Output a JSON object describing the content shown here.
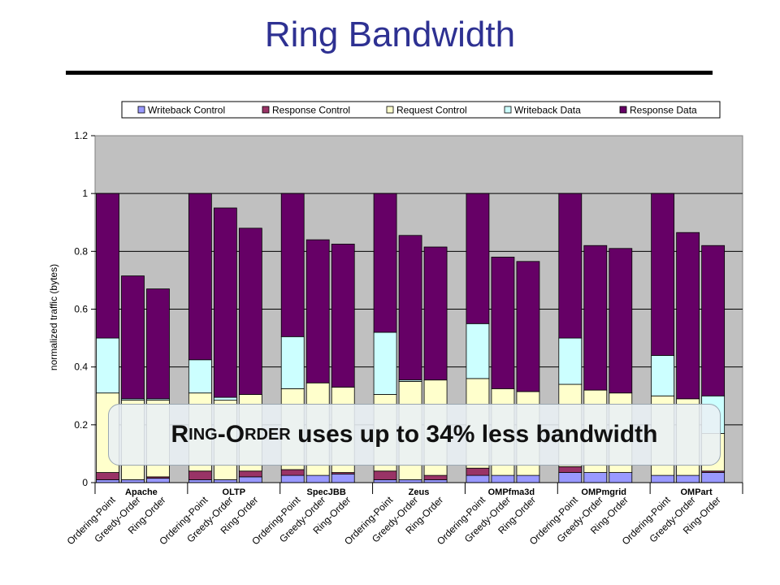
{
  "slide": {
    "title": "Ring Bandwidth"
  },
  "callout": {
    "text_parts": [
      "R",
      "ING",
      "-",
      "O",
      "RDER",
      " uses up to 34% less bandwidth"
    ]
  },
  "colors": {
    "writeback_control": "#9999ff",
    "response_control": "#993366",
    "request_control": "#ffffcc",
    "writeback_data": "#ccffff",
    "response_data": "#660066",
    "plot_background": "#c0c0c0",
    "title": "#2e3192"
  },
  "chart_data": {
    "type": "bar",
    "stacked": true,
    "title": "",
    "ylabel": "normalized traffic (bytes)",
    "xlabel": "",
    "ylim": [
      0,
      1.2
    ],
    "yticks": [
      "0",
      "0.2",
      "0.4",
      "0.6",
      "0.8",
      "1",
      "1.2"
    ],
    "grid": true,
    "legend_position": "top",
    "groups": [
      "Apache",
      "OLTP",
      "SpecJBB",
      "Zeus",
      "OMPfma3d",
      "OMPmgrid",
      "OMPart"
    ],
    "protocols": [
      "Ordering-Point",
      "Greedy-Order",
      "Ring-Order"
    ],
    "series": [
      {
        "name": "Writeback Control",
        "color": "#9999ff",
        "values": [
          0.01,
          0.01,
          0.015,
          0.01,
          0.01,
          0.02,
          0.025,
          0.025,
          0.03,
          0.01,
          0.01,
          0.01,
          0.025,
          0.025,
          0.025,
          0.035,
          0.035,
          0.035,
          0.025,
          0.025,
          0.035
        ]
      },
      {
        "name": "Response Control",
        "color": "#993366",
        "values": [
          0.025,
          0.0,
          0.005,
          0.03,
          0.0,
          0.02,
          0.02,
          0.0,
          0.005,
          0.03,
          0.0,
          0.015,
          0.025,
          0.0,
          0.0,
          0.02,
          0.0,
          0.0,
          0.0,
          0.0,
          0.005
        ]
      },
      {
        "name": "Request Control",
        "color": "#ffffcc",
        "values": [
          0.275,
          0.275,
          0.265,
          0.27,
          0.275,
          0.265,
          0.28,
          0.32,
          0.295,
          0.265,
          0.34,
          0.33,
          0.31,
          0.3,
          0.29,
          0.285,
          0.285,
          0.275,
          0.275,
          0.265,
          0.13
        ]
      },
      {
        "name": "Writeback Data",
        "color": "#ccffff",
        "values": [
          0.19,
          0.005,
          0.005,
          0.115,
          0.01,
          0.0,
          0.18,
          0.0,
          0.0,
          0.215,
          0.005,
          0.0,
          0.19,
          0.0,
          0.0,
          0.16,
          0.0,
          0.0,
          0.14,
          0.0,
          0.13
        ]
      },
      {
        "name": "Response Data",
        "color": "#660066",
        "values": [
          0.5,
          0.425,
          0.38,
          0.575,
          0.655,
          0.575,
          0.495,
          0.495,
          0.495,
          0.48,
          0.5,
          0.46,
          0.45,
          0.455,
          0.45,
          0.5,
          0.5,
          0.5,
          0.56,
          0.575,
          0.52
        ]
      }
    ]
  }
}
